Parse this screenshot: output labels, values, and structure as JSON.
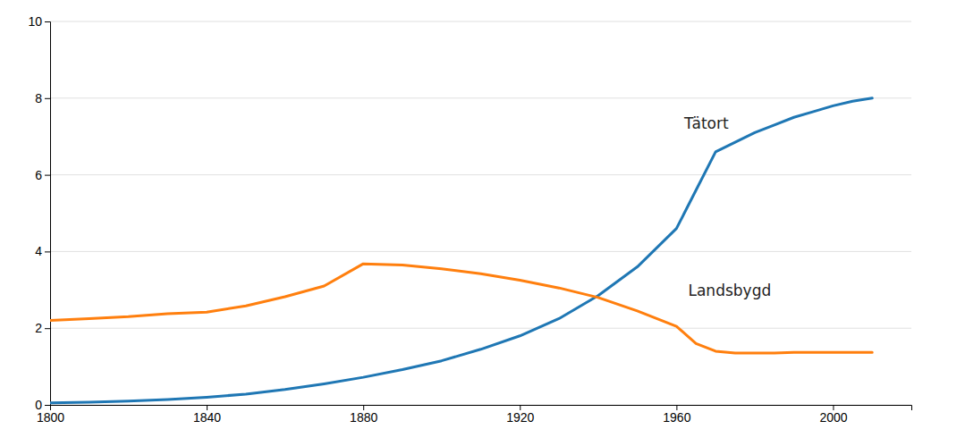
{
  "chart_data": {
    "type": "line",
    "x": [
      1800,
      1810,
      1820,
      1830,
      1840,
      1850,
      1860,
      1870,
      1880,
      1890,
      1900,
      1910,
      1920,
      1930,
      1940,
      1950,
      1960,
      1965,
      1970,
      1975,
      1980,
      1985,
      1990,
      1995,
      2000,
      2005,
      2010
    ],
    "series": [
      {
        "values": [
          0.05,
          0.07,
          0.1,
          0.14,
          0.2,
          0.28,
          0.4,
          0.55,
          0.72,
          0.92,
          1.15,
          1.45,
          1.8,
          2.25,
          2.85,
          3.6,
          4.6,
          5.6,
          6.6,
          6.85,
          7.1,
          7.3,
          7.5,
          7.65,
          7.8,
          7.92,
          8.0
        ]
      },
      {
        "values": [
          2.2,
          2.25,
          2.3,
          2.38,
          2.42,
          2.58,
          2.82,
          3.1,
          3.68,
          3.65,
          3.55,
          3.42,
          3.25,
          3.05,
          2.8,
          2.45,
          2.05,
          1.6,
          1.4,
          1.35,
          1.35,
          1.35,
          1.37,
          1.37,
          1.37,
          1.37,
          1.37
        ]
      }
    ],
    "annotations": [
      {
        "text": "Tätort",
        "x": 1962,
        "y": 7.1
      },
      {
        "text": "Landsbygd",
        "x": 1963,
        "y": 2.75
      }
    ],
    "xlim": [
      1800,
      2020
    ],
    "ylim": [
      0,
      10
    ],
    "xticks": [
      1800,
      1840,
      1880,
      1920,
      1960,
      2000
    ],
    "yticks": [
      0,
      2,
      4,
      6,
      8,
      10
    ],
    "grid": true
  }
}
